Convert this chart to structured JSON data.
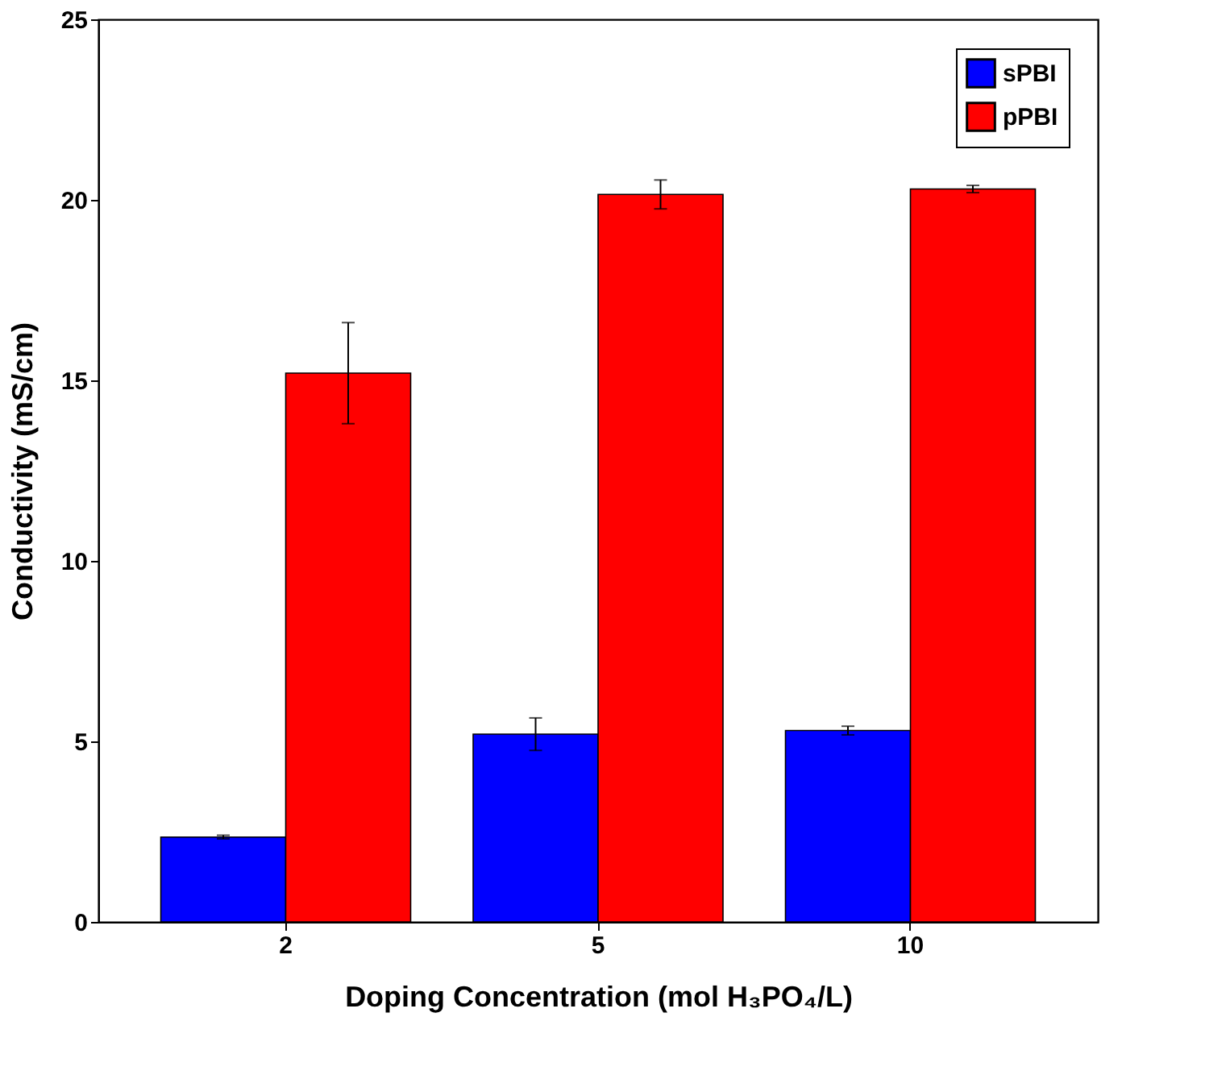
{
  "chart_data": {
    "type": "bar",
    "xlabel": "Doping Concentration (mol H₃PO₄/L)",
    "ylabel": "Conductivity (mS/cm)",
    "categories": [
      "2",
      "5",
      "10"
    ],
    "series": [
      {
        "name": "sPBI",
        "color": "#0000ff",
        "values": [
          2.35,
          5.2,
          5.3
        ],
        "errors": [
          0.05,
          0.45,
          0.12
        ]
      },
      {
        "name": "pPBI",
        "color": "#ff0000",
        "values": [
          15.2,
          20.15,
          20.3
        ],
        "errors": [
          1.4,
          0.4,
          0.1
        ]
      }
    ],
    "ylim": [
      0,
      25
    ],
    "yticks": [
      0,
      5,
      10,
      15,
      20,
      25
    ],
    "grid": false,
    "legend": "top right"
  }
}
